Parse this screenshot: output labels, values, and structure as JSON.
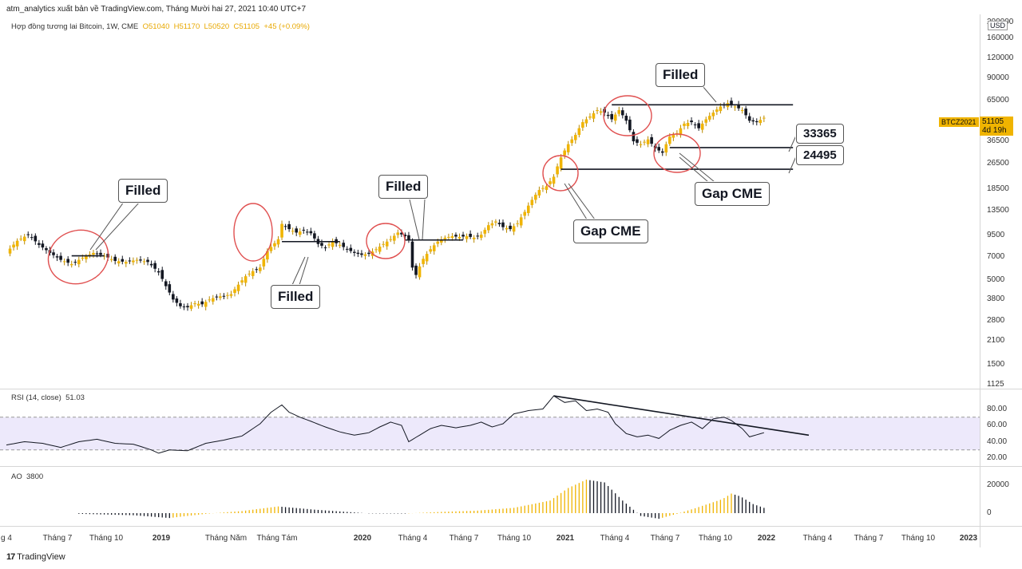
{
  "header": "atm_analytics xuất bản về TradingView.com, Tháng Mười hai 27, 2021 10:40 UTC+7",
  "legend": {
    "symbol": "Hợp đồng tương lai Bitcoin, 1W, CME",
    "o": "O51040",
    "h": "H51170",
    "l": "L50520",
    "c": "C51105",
    "chg": "+45 (+0.09%)"
  },
  "price_axis": {
    "currency": "USD",
    "ticks": [
      "200000",
      "160000",
      "120000",
      "90000",
      "65000",
      "51105",
      "36500",
      "26500",
      "18500",
      "13500",
      "9500",
      "7000",
      "5000",
      "3800",
      "2800",
      "2100",
      "1500",
      "1125"
    ],
    "last_price": "51105",
    "countdown": "4d 19h",
    "symbol_tag": "BTCZ2021"
  },
  "rsi": {
    "label": "RSI (14, close)",
    "value": "51.03",
    "ticks": [
      "80.00",
      "60.00",
      "40.00",
      "20.00"
    ]
  },
  "ao": {
    "label": "AO",
    "value": "3800",
    "ticks": [
      "20000",
      "0"
    ]
  },
  "time_axis": [
    {
      "label": "g 4",
      "bold": false
    },
    {
      "label": "Tháng 7",
      "bold": false
    },
    {
      "label": "Tháng 10",
      "bold": false
    },
    {
      "label": "2019",
      "bold": true
    },
    {
      "label": "Tháng Năm",
      "bold": false
    },
    {
      "label": "Tháng Tám",
      "bold": false
    },
    {
      "label": "2020",
      "bold": true
    },
    {
      "label": "Tháng 4",
      "bold": false
    },
    {
      "label": "Tháng 7",
      "bold": false
    },
    {
      "label": "Tháng 10",
      "bold": false
    },
    {
      "label": "2021",
      "bold": true
    },
    {
      "label": "Tháng 4",
      "bold": false
    },
    {
      "label": "Tháng 7",
      "bold": false
    },
    {
      "label": "Tháng 10",
      "bold": false
    },
    {
      "label": "2022",
      "bold": true
    },
    {
      "label": "Tháng 4",
      "bold": false
    },
    {
      "label": "Tháng 7",
      "bold": false
    },
    {
      "label": "Tháng 10",
      "bold": false
    },
    {
      "label": "2023",
      "bold": true
    }
  ],
  "annotations": {
    "filled_1": "Filled",
    "filled_2": "Filled",
    "filled_3": "Filled",
    "filled_4": "Filled",
    "gap_1": "Gap CME",
    "gap_2": "Gap CME",
    "level_1": "33365",
    "level_2": "24495"
  },
  "footer": "TradingView",
  "colors": {
    "up": "#f0b400",
    "down": "#131722",
    "rsi_band": "#ede9fb",
    "circle": "#e05050"
  },
  "chart_data": {
    "type": "candlestick",
    "interval": "1W",
    "title": "Hợp đồng tương lai Bitcoin, 1W, CME",
    "y_scale": "log",
    "ylim": [
      1125,
      200000
    ],
    "price_path": [
      [
        0,
        7400
      ],
      [
        6,
        8800
      ],
      [
        12,
        9600
      ],
      [
        18,
        8300
      ],
      [
        24,
        7400
      ],
      [
        30,
        6700
      ],
      [
        36,
        6300
      ],
      [
        42,
        6900
      ],
      [
        48,
        7400
      ],
      [
        54,
        7100
      ],
      [
        60,
        6600
      ],
      [
        66,
        6500
      ],
      [
        72,
        6700
      ],
      [
        78,
        6500
      ],
      [
        84,
        5600
      ],
      [
        88,
        4600
      ],
      [
        92,
        3800
      ],
      [
        96,
        3450
      ],
      [
        100,
        3400
      ],
      [
        104,
        3600
      ],
      [
        108,
        3550
      ],
      [
        112,
        3800
      ],
      [
        116,
        3950
      ],
      [
        120,
        4000
      ],
      [
        124,
        4100
      ],
      [
        128,
        4700
      ],
      [
        132,
        5300
      ],
      [
        136,
        5700
      ],
      [
        140,
        6000
      ],
      [
        144,
        7600
      ],
      [
        148,
        8500
      ],
      [
        150,
        9000
      ],
      [
        152,
        11200
      ],
      [
        154,
        10800
      ],
      [
        156,
        10400
      ],
      [
        160,
        9900
      ],
      [
        164,
        10200
      ],
      [
        168,
        9800
      ],
      [
        172,
        8400
      ],
      [
        176,
        8000
      ],
      [
        180,
        8700
      ],
      [
        184,
        8300
      ],
      [
        188,
        7800
      ],
      [
        192,
        7400
      ],
      [
        196,
        7200
      ],
      [
        200,
        7300
      ],
      [
        204,
        7800
      ],
      [
        208,
        8400
      ],
      [
        212,
        9000
      ],
      [
        216,
        9900
      ],
      [
        220,
        9400
      ],
      [
        222,
        8900
      ],
      [
        224,
        6000
      ],
      [
        226,
        5400
      ],
      [
        230,
        6800
      ],
      [
        234,
        7800
      ],
      [
        238,
        8700
      ],
      [
        242,
        9200
      ],
      [
        246,
        9400
      ],
      [
        250,
        9300
      ],
      [
        254,
        9400
      ],
      [
        258,
        9200
      ],
      [
        262,
        9600
      ],
      [
        266,
        11000
      ],
      [
        270,
        11600
      ],
      [
        274,
        10700
      ],
      [
        278,
        10400
      ],
      [
        282,
        11300
      ],
      [
        286,
        13300
      ],
      [
        290,
        15800
      ],
      [
        294,
        18200
      ],
      [
        298,
        19200
      ],
      [
        302,
        22000
      ],
      [
        306,
        29000
      ],
      [
        310,
        35000
      ],
      [
        314,
        40000
      ],
      [
        318,
        48000
      ],
      [
        322,
        52000
      ],
      [
        326,
        57000
      ],
      [
        330,
        55000
      ],
      [
        334,
        50000
      ],
      [
        338,
        57000
      ],
      [
        342,
        49000
      ],
      [
        346,
        36500
      ],
      [
        350,
        35000
      ],
      [
        354,
        37500
      ],
      [
        358,
        33000
      ],
      [
        362,
        31000
      ],
      [
        366,
        39000
      ],
      [
        370,
        41000
      ],
      [
        374,
        47000
      ],
      [
        378,
        48000
      ],
      [
        382,
        44000
      ],
      [
        386,
        50000
      ],
      [
        390,
        55000
      ],
      [
        394,
        60000
      ],
      [
        398,
        63000
      ],
      [
        402,
        60000
      ],
      [
        406,
        57000
      ],
      [
        410,
        49000
      ],
      [
        414,
        48000
      ],
      [
        418,
        51105
      ]
    ],
    "rsi_values": [
      [
        0,
        36
      ],
      [
        10,
        40
      ],
      [
        20,
        38
      ],
      [
        30,
        33
      ],
      [
        40,
        40
      ],
      [
        50,
        43
      ],
      [
        60,
        38
      ],
      [
        70,
        37
      ],
      [
        80,
        30
      ],
      [
        84,
        26
      ],
      [
        90,
        30
      ],
      [
        100,
        29
      ],
      [
        110,
        38
      ],
      [
        120,
        42
      ],
      [
        130,
        47
      ],
      [
        140,
        62
      ],
      [
        146,
        76
      ],
      [
        152,
        85
      ],
      [
        156,
        76
      ],
      [
        162,
        70
      ],
      [
        168,
        65
      ],
      [
        176,
        58
      ],
      [
        184,
        52
      ],
      [
        192,
        48
      ],
      [
        200,
        51
      ],
      [
        206,
        58
      ],
      [
        212,
        64
      ],
      [
        218,
        60
      ],
      [
        222,
        40
      ],
      [
        228,
        48
      ],
      [
        234,
        56
      ],
      [
        240,
        60
      ],
      [
        248,
        57
      ],
      [
        256,
        60
      ],
      [
        262,
        64
      ],
      [
        268,
        58
      ],
      [
        274,
        62
      ],
      [
        280,
        74
      ],
      [
        288,
        78
      ],
      [
        296,
        80
      ],
      [
        302,
        96
      ],
      [
        308,
        88
      ],
      [
        314,
        90
      ],
      [
        320,
        78
      ],
      [
        326,
        80
      ],
      [
        332,
        76
      ],
      [
        336,
        62
      ],
      [
        342,
        50
      ],
      [
        348,
        46
      ],
      [
        354,
        48
      ],
      [
        360,
        44
      ],
      [
        366,
        54
      ],
      [
        372,
        60
      ],
      [
        378,
        64
      ],
      [
        384,
        56
      ],
      [
        390,
        68
      ],
      [
        396,
        70
      ],
      [
        400,
        66
      ],
      [
        406,
        56
      ],
      [
        410,
        46
      ],
      [
        418,
        51.03
      ]
    ],
    "rsi_band": [
      30,
      70
    ],
    "rsi_trendline": [
      [
        302,
        96
      ],
      [
        406,
        57
      ]
    ],
    "ao_values": [
      [
        40,
        -500
      ],
      [
        70,
        -1500
      ],
      [
        90,
        -3500
      ],
      [
        110,
        -500
      ],
      [
        130,
        1500
      ],
      [
        150,
        4800
      ],
      [
        170,
        2500
      ],
      [
        200,
        -200
      ],
      [
        220,
        -300
      ],
      [
        240,
        900
      ],
      [
        260,
        1800
      ],
      [
        280,
        3800
      ],
      [
        300,
        9000
      ],
      [
        310,
        18000
      ],
      [
        320,
        24000
      ],
      [
        330,
        22000
      ],
      [
        340,
        9000
      ],
      [
        350,
        -2000
      ],
      [
        360,
        -4000
      ],
      [
        370,
        -500
      ],
      [
        380,
        3500
      ],
      [
        395,
        10000
      ],
      [
        400,
        14000
      ],
      [
        405,
        12000
      ],
      [
        412,
        6500
      ],
      [
        418,
        3800
      ]
    ],
    "horizontal_levels": [
      {
        "price": 7100,
        "x_from": 36,
        "x_to": 54
      },
      {
        "price": 8700,
        "x_from": 152,
        "x_to": 184
      },
      {
        "price": 8900,
        "x_from": 220,
        "x_to": 252
      },
      {
        "price": 61500,
        "x_from": 334,
        "x_to": 434
      },
      {
        "price": 33365,
        "x_from": 366,
        "x_to": 434
      },
      {
        "price": 24495,
        "x_from": 306,
        "x_to": 434
      }
    ],
    "gap_levels": [
      33365,
      24495
    ]
  }
}
